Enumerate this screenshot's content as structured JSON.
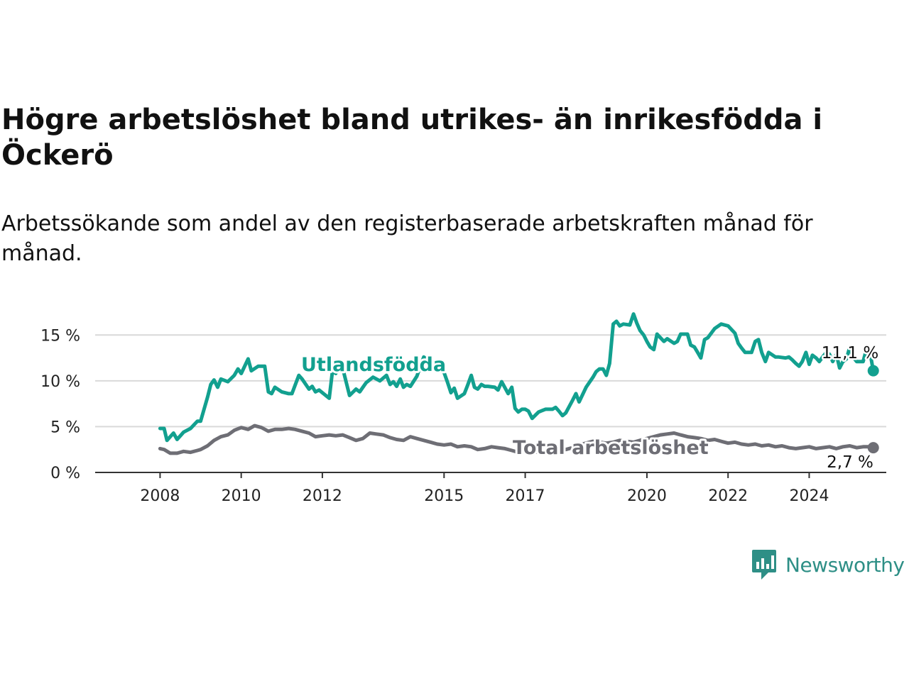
{
  "header": {
    "title": "Högre arbetslöshet bland utrikes- än inrikesfödda i Öckerö",
    "subtitle": "Arbetssökande som andel av den registerbaserade arbetskraften månad för månad."
  },
  "brand": {
    "name": "Newsworthy",
    "icon": "newsworthy-logo-icon",
    "color": "#2e8f86"
  },
  "chart_data": {
    "type": "line",
    "title": "Högre arbetslöshet bland utrikes- än inrikesfödda i Öckerö",
    "subtitle": "Arbetssökande som andel av den registerbaserade arbetskraften månad för månad.",
    "xlabel": "",
    "ylabel": "",
    "x_ticks": [
      2008,
      2010,
      2012,
      2015,
      2017,
      2020,
      2022,
      2024
    ],
    "x_tick_labels": [
      "2008",
      "2010",
      "2012",
      "2015",
      "2017",
      "2020",
      "2022",
      "2024"
    ],
    "y_ticks": [
      0,
      5,
      10,
      15
    ],
    "y_tick_labels": [
      "0 %",
      "5 %",
      "10 %",
      "15 %"
    ],
    "xlim": [
      2006.4,
      2025.9
    ],
    "ylim": [
      0,
      17.5
    ],
    "grid": true,
    "legend": "direct labels on lines",
    "series": [
      {
        "name": "Utlandsfödda",
        "color": "#12a08f",
        "last_value_label": "11,1 %",
        "points": [
          [
            2008.0,
            4.8
          ],
          [
            2008.1,
            4.8
          ],
          [
            2008.17,
            3.5
          ],
          [
            2008.33,
            4.3
          ],
          [
            2008.42,
            3.6
          ],
          [
            2008.58,
            4.4
          ],
          [
            2008.75,
            4.8
          ],
          [
            2008.92,
            5.6
          ],
          [
            2009.0,
            5.6
          ],
          [
            2009.17,
            8.2
          ],
          [
            2009.25,
            9.6
          ],
          [
            2009.33,
            10.1
          ],
          [
            2009.42,
            9.3
          ],
          [
            2009.5,
            10.2
          ],
          [
            2009.67,
            9.9
          ],
          [
            2009.83,
            10.6
          ],
          [
            2009.92,
            11.3
          ],
          [
            2010.0,
            10.8
          ],
          [
            2010.17,
            12.4
          ],
          [
            2010.25,
            11.1
          ],
          [
            2010.42,
            11.6
          ],
          [
            2010.58,
            11.6
          ],
          [
            2010.67,
            8.8
          ],
          [
            2010.75,
            8.6
          ],
          [
            2010.83,
            9.3
          ],
          [
            2011.0,
            8.8
          ],
          [
            2011.17,
            8.6
          ],
          [
            2011.25,
            8.6
          ],
          [
            2011.42,
            10.6
          ],
          [
            2011.5,
            10.2
          ],
          [
            2011.67,
            9.1
          ],
          [
            2011.75,
            9.4
          ],
          [
            2011.83,
            8.8
          ],
          [
            2011.92,
            9.0
          ],
          [
            2012.0,
            8.7
          ],
          [
            2012.17,
            8.1
          ],
          [
            2012.25,
            11.1
          ],
          [
            2012.33,
            10.8
          ],
          [
            2012.42,
            11.8
          ],
          [
            2012.5,
            11.4
          ],
          [
            2012.67,
            8.4
          ],
          [
            2012.83,
            9.1
          ],
          [
            2012.92,
            8.8
          ],
          [
            2013.0,
            9.3
          ],
          [
            2013.08,
            9.8
          ],
          [
            2013.25,
            10.4
          ],
          [
            2013.42,
            10.0
          ],
          [
            2013.58,
            10.6
          ],
          [
            2013.67,
            9.6
          ],
          [
            2013.75,
            9.9
          ],
          [
            2013.83,
            9.4
          ],
          [
            2013.92,
            10.2
          ],
          [
            2014.0,
            9.3
          ],
          [
            2014.08,
            9.6
          ],
          [
            2014.17,
            9.4
          ],
          [
            2014.33,
            10.5
          ],
          [
            2014.5,
            12.6
          ],
          [
            2014.67,
            12.1
          ],
          [
            2014.83,
            11.6
          ],
          [
            2015.0,
            10.9
          ],
          [
            2015.08,
            9.9
          ],
          [
            2015.17,
            8.7
          ],
          [
            2015.25,
            9.2
          ],
          [
            2015.33,
            8.1
          ],
          [
            2015.5,
            8.6
          ],
          [
            2015.58,
            9.5
          ],
          [
            2015.67,
            10.6
          ],
          [
            2015.75,
            9.3
          ],
          [
            2015.83,
            9.1
          ],
          [
            2015.92,
            9.6
          ],
          [
            2016.0,
            9.4
          ],
          [
            2016.08,
            9.4
          ],
          [
            2016.25,
            9.3
          ],
          [
            2016.33,
            9.0
          ],
          [
            2016.42,
            9.9
          ],
          [
            2016.58,
            8.6
          ],
          [
            2016.67,
            9.3
          ],
          [
            2016.75,
            7.0
          ],
          [
            2016.83,
            6.6
          ],
          [
            2016.92,
            6.9
          ],
          [
            2017.0,
            6.9
          ],
          [
            2017.08,
            6.7
          ],
          [
            2017.17,
            5.9
          ],
          [
            2017.33,
            6.6
          ],
          [
            2017.5,
            6.9
          ],
          [
            2017.67,
            6.9
          ],
          [
            2017.75,
            7.1
          ],
          [
            2017.83,
            6.7
          ],
          [
            2017.92,
            6.2
          ],
          [
            2018.0,
            6.5
          ],
          [
            2018.17,
            7.9
          ],
          [
            2018.25,
            8.6
          ],
          [
            2018.33,
            7.7
          ],
          [
            2018.5,
            9.3
          ],
          [
            2018.67,
            10.4
          ],
          [
            2018.75,
            11.0
          ],
          [
            2018.83,
            11.3
          ],
          [
            2018.92,
            11.3
          ],
          [
            2019.0,
            10.6
          ],
          [
            2019.08,
            11.9
          ],
          [
            2019.17,
            16.2
          ],
          [
            2019.25,
            16.5
          ],
          [
            2019.33,
            16.0
          ],
          [
            2019.42,
            16.2
          ],
          [
            2019.58,
            16.1
          ],
          [
            2019.67,
            17.3
          ],
          [
            2019.75,
            16.3
          ],
          [
            2019.83,
            15.5
          ],
          [
            2019.92,
            15.0
          ],
          [
            2020.0,
            14.3
          ],
          [
            2020.08,
            13.7
          ],
          [
            2020.17,
            13.4
          ],
          [
            2020.25,
            15.1
          ],
          [
            2020.42,
            14.3
          ],
          [
            2020.5,
            14.6
          ],
          [
            2020.67,
            14.1
          ],
          [
            2020.75,
            14.3
          ],
          [
            2020.83,
            15.1
          ],
          [
            2021.0,
            15.1
          ],
          [
            2021.08,
            13.9
          ],
          [
            2021.17,
            13.7
          ],
          [
            2021.25,
            13.1
          ],
          [
            2021.33,
            12.5
          ],
          [
            2021.42,
            14.5
          ],
          [
            2021.5,
            14.7
          ],
          [
            2021.67,
            15.7
          ],
          [
            2021.83,
            16.2
          ],
          [
            2022.0,
            16.0
          ],
          [
            2022.17,
            15.2
          ],
          [
            2022.25,
            14.1
          ],
          [
            2022.33,
            13.6
          ],
          [
            2022.42,
            13.1
          ],
          [
            2022.58,
            13.1
          ],
          [
            2022.67,
            14.3
          ],
          [
            2022.75,
            14.5
          ],
          [
            2022.83,
            13.1
          ],
          [
            2022.92,
            12.1
          ],
          [
            2023.0,
            13.1
          ],
          [
            2023.17,
            12.6
          ],
          [
            2023.25,
            12.6
          ],
          [
            2023.42,
            12.5
          ],
          [
            2023.5,
            12.6
          ],
          [
            2023.58,
            12.3
          ],
          [
            2023.67,
            11.9
          ],
          [
            2023.75,
            11.6
          ],
          [
            2023.83,
            12.1
          ],
          [
            2023.92,
            13.1
          ],
          [
            2024.0,
            11.8
          ],
          [
            2024.08,
            12.8
          ],
          [
            2024.17,
            12.5
          ],
          [
            2024.25,
            12.1
          ],
          [
            2024.33,
            12.6
          ],
          [
            2024.42,
            13.1
          ],
          [
            2024.5,
            12.9
          ],
          [
            2024.58,
            12.1
          ],
          [
            2024.67,
            12.9
          ],
          [
            2024.75,
            11.4
          ],
          [
            2024.83,
            12.1
          ],
          [
            2024.92,
            12.4
          ],
          [
            2025.0,
            13.7
          ],
          [
            2025.08,
            12.6
          ],
          [
            2025.17,
            12.1
          ],
          [
            2025.33,
            12.1
          ],
          [
            2025.42,
            13.6
          ],
          [
            2025.5,
            13.1
          ],
          [
            2025.58,
            11.1
          ]
        ]
      },
      {
        "name": "Total arbetslöshet",
        "color": "#6e6e75",
        "last_value_label": "2,7 %",
        "points": [
          [
            2008.0,
            2.6
          ],
          [
            2008.1,
            2.5
          ],
          [
            2008.25,
            2.1
          ],
          [
            2008.42,
            2.1
          ],
          [
            2008.58,
            2.3
          ],
          [
            2008.75,
            2.2
          ],
          [
            2008.92,
            2.4
          ],
          [
            2009.0,
            2.5
          ],
          [
            2009.17,
            2.9
          ],
          [
            2009.33,
            3.5
          ],
          [
            2009.5,
            3.9
          ],
          [
            2009.67,
            4.1
          ],
          [
            2009.83,
            4.6
          ],
          [
            2010.0,
            4.9
          ],
          [
            2010.17,
            4.7
          ],
          [
            2010.33,
            5.1
          ],
          [
            2010.5,
            4.9
          ],
          [
            2010.67,
            4.5
          ],
          [
            2010.83,
            4.7
          ],
          [
            2011.0,
            4.7
          ],
          [
            2011.17,
            4.8
          ],
          [
            2011.33,
            4.7
          ],
          [
            2011.5,
            4.5
          ],
          [
            2011.67,
            4.3
          ],
          [
            2011.83,
            3.9
          ],
          [
            2012.0,
            4.0
          ],
          [
            2012.17,
            4.1
          ],
          [
            2012.33,
            4.0
          ],
          [
            2012.5,
            4.1
          ],
          [
            2012.67,
            3.8
          ],
          [
            2012.83,
            3.5
          ],
          [
            2013.0,
            3.7
          ],
          [
            2013.17,
            4.3
          ],
          [
            2013.33,
            4.2
          ],
          [
            2013.5,
            4.1
          ],
          [
            2013.67,
            3.8
          ],
          [
            2013.83,
            3.6
          ],
          [
            2014.0,
            3.5
          ],
          [
            2014.17,
            3.9
          ],
          [
            2014.33,
            3.7
          ],
          [
            2014.5,
            3.5
          ],
          [
            2014.67,
            3.3
          ],
          [
            2014.83,
            3.1
          ],
          [
            2015.0,
            3.0
          ],
          [
            2015.17,
            3.1
          ],
          [
            2015.33,
            2.8
          ],
          [
            2015.5,
            2.9
          ],
          [
            2015.67,
            2.8
          ],
          [
            2015.83,
            2.5
          ],
          [
            2016.0,
            2.6
          ],
          [
            2016.17,
            2.8
          ],
          [
            2016.33,
            2.7
          ],
          [
            2016.5,
            2.6
          ],
          [
            2016.67,
            2.4
          ],
          [
            2016.83,
            2.2
          ],
          [
            2017.0,
            2.3
          ],
          [
            2017.17,
            2.3
          ],
          [
            2017.33,
            2.2
          ],
          [
            2017.5,
            2.2
          ],
          [
            2017.67,
            2.3
          ],
          [
            2017.83,
            2.4
          ],
          [
            2018.0,
            2.5
          ],
          [
            2018.17,
            2.7
          ],
          [
            2018.33,
            3.0
          ],
          [
            2018.5,
            3.2
          ],
          [
            2018.67,
            3.4
          ],
          [
            2018.83,
            3.3
          ],
          [
            2019.0,
            3.2
          ],
          [
            2019.17,
            3.3
          ],
          [
            2019.33,
            3.5
          ],
          [
            2019.5,
            3.4
          ],
          [
            2019.67,
            3.3
          ],
          [
            2019.83,
            3.5
          ],
          [
            2020.0,
            3.7
          ],
          [
            2020.17,
            3.9
          ],
          [
            2020.33,
            4.1
          ],
          [
            2020.5,
            4.2
          ],
          [
            2020.67,
            4.3
          ],
          [
            2020.83,
            4.1
          ],
          [
            2021.0,
            3.9
          ],
          [
            2021.17,
            3.8
          ],
          [
            2021.33,
            3.7
          ],
          [
            2021.5,
            3.5
          ],
          [
            2021.67,
            3.6
          ],
          [
            2021.83,
            3.4
          ],
          [
            2022.0,
            3.2
          ],
          [
            2022.17,
            3.3
          ],
          [
            2022.33,
            3.1
          ],
          [
            2022.5,
            3.0
          ],
          [
            2022.67,
            3.1
          ],
          [
            2022.83,
            2.9
          ],
          [
            2023.0,
            3.0
          ],
          [
            2023.17,
            2.8
          ],
          [
            2023.33,
            2.9
          ],
          [
            2023.5,
            2.7
          ],
          [
            2023.67,
            2.6
          ],
          [
            2023.83,
            2.7
          ],
          [
            2024.0,
            2.8
          ],
          [
            2024.17,
            2.6
          ],
          [
            2024.33,
            2.7
          ],
          [
            2024.5,
            2.8
          ],
          [
            2024.67,
            2.6
          ],
          [
            2024.83,
            2.8
          ],
          [
            2025.0,
            2.9
          ],
          [
            2025.17,
            2.7
          ],
          [
            2025.33,
            2.8
          ],
          [
            2025.5,
            2.8
          ],
          [
            2025.58,
            2.7
          ]
        ]
      }
    ]
  }
}
